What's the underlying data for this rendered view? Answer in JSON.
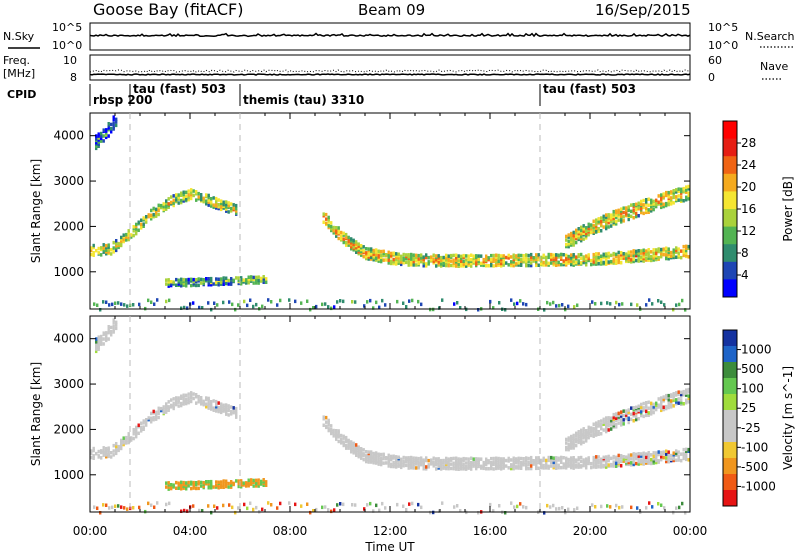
{
  "header": {
    "station": "Goose Bay (fitACF)",
    "beam": "Beam 09",
    "date": "16/Sep/2015"
  },
  "left_labels": {
    "nsky": "N.Sky",
    "freq": "Freq.",
    "freq_unit": "[MHz]",
    "cpid": "CPID"
  },
  "right_labels": {
    "nsearch": "N.Search",
    "nave": "Nave"
  },
  "strip_ticks": {
    "nsky_left": [
      "10^5",
      "10^0"
    ],
    "nsky_right": [
      "10^5",
      "10^0"
    ],
    "freq_left": [
      "10",
      "8"
    ],
    "nave_right": [
      "60",
      "0"
    ]
  },
  "cpid_segments": [
    {
      "label": "rbsp 200",
      "start": 0.0
    },
    {
      "label": "tau (fast) 503",
      "start": 1.6
    },
    {
      "label": "themis (tau) 3310",
      "start": 6.0
    },
    {
      "label": "tau (fast) 503",
      "start": 18.0
    }
  ],
  "colors": {
    "power_scale": [
      "#0000ff",
      "#1e46b4",
      "#2f8c6e",
      "#53b453",
      "#aad23c",
      "#f5e632",
      "#f5aa1e",
      "#f06414",
      "#e61e14",
      "#ff0000"
    ],
    "velocity_scale": [
      "#1432a0",
      "#1e64c8",
      "#3c8c3c",
      "#64c850",
      "#a0dc3c",
      "#c8c8c8",
      "#c8c8c8",
      "#f0c832",
      "#f0961e",
      "#f05a14",
      "#e61414"
    ],
    "ground_scatter": "#c8c8c8"
  },
  "chart_data": [
    {
      "type": "heatmap",
      "title": "Power",
      "xlabel": "Time UT",
      "ylabel": "Slant Range [km]",
      "x_ticks": [
        "00:00",
        "04:00",
        "08:00",
        "12:00",
        "16:00",
        "20:00",
        "00:00"
      ],
      "xlim": [
        0,
        24
      ],
      "y_ticks": [
        "1000",
        "2000",
        "3000",
        "4000"
      ],
      "ylim": [
        180,
        4500
      ],
      "colorbar_label": "Power [dB]",
      "colorbar_ticks": [
        "4",
        "8",
        "12",
        "16",
        "20",
        "24",
        "28"
      ],
      "colorbar_range": [
        0,
        30
      ],
      "scatter_bands": [
        {
          "name": "early",
          "x": [
            0.0,
            0.8,
            1.5,
            2.5,
            3.3,
            4.0,
            4.5,
            5.0,
            5.8
          ],
          "y": [
            1520,
            1540,
            1850,
            2350,
            2620,
            2750,
            2680,
            2550,
            2400
          ],
          "width": 240,
          "level": 14
        },
        {
          "name": "main",
          "x": [
            9.3,
            9.8,
            10.3,
            11.0,
            12.0,
            13.0,
            15.0,
            17.0,
            19.0,
            20.5,
            21.5,
            22.5,
            23.5,
            24.0
          ],
          "y": [
            2250,
            1950,
            1700,
            1450,
            1350,
            1300,
            1290,
            1300,
            1310,
            1330,
            1380,
            1420,
            1470,
            1500
          ],
          "width": 260,
          "level": 16
        },
        {
          "name": "upper-late",
          "x": [
            19.0,
            20.0,
            21.0,
            22.0,
            23.0,
            24.0
          ],
          "y": [
            1700,
            2000,
            2250,
            2450,
            2650,
            2800
          ],
          "width": 320,
          "level": 16
        },
        {
          "name": "sparse-top",
          "x": [
            0.2,
            0.6,
            1.0
          ],
          "y": [
            3900,
            4100,
            4400
          ],
          "width": 300,
          "level": 6
        },
        {
          "name": "e-region",
          "x": [
            3.0,
            4.5,
            6.0,
            7.0
          ],
          "y": [
            800,
            820,
            850,
            880
          ],
          "width": 160,
          "level": 10
        }
      ],
      "near_range_band": {
        "y": [
          200,
          420
        ],
        "x": [
          0,
          24
        ],
        "level": 6
      }
    },
    {
      "type": "heatmap",
      "title": "Velocity",
      "xlabel": "Time UT",
      "ylabel": "Slant Range [km]",
      "x_ticks": [
        "00:00",
        "04:00",
        "08:00",
        "12:00",
        "16:00",
        "20:00",
        "00:00"
      ],
      "xlim": [
        0,
        24
      ],
      "y_ticks": [
        "1000",
        "2000",
        "3000",
        "4000"
      ],
      "ylim": [
        180,
        4500
      ],
      "colorbar_label": "Velocity [m s^-1]",
      "colorbar_ticks": [
        "1000",
        "500",
        "100",
        "25",
        "-25",
        "-100",
        "-500",
        "-1000"
      ],
      "dominant_value": "ground scatter (grey)"
    }
  ]
}
